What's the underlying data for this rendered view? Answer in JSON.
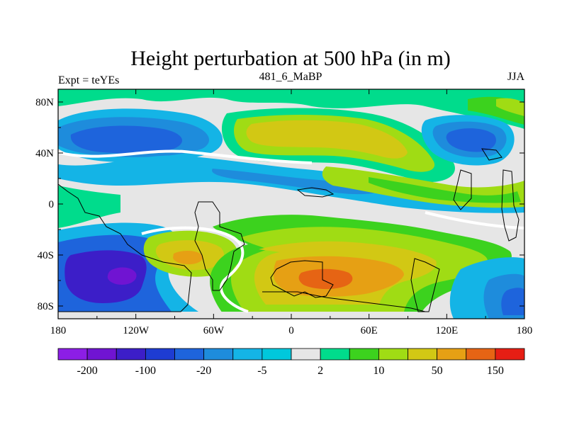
{
  "chart_data": {
    "type": "heatmap",
    "title": "Height perturbation at 500 hPa (in m)",
    "left_label": "Expt = teYEs",
    "center_label": "481_6_MaBP",
    "right_label": "JJA",
    "x_ticks": [
      "180",
      "120W",
      "60W",
      "0",
      "60E",
      "120E",
      "180"
    ],
    "x_tick_values": [
      -180,
      -120,
      -60,
      0,
      60,
      120,
      180
    ],
    "y_ticks": [
      "80N",
      "40N",
      "0",
      "40S",
      "80S"
    ],
    "y_tick_values": [
      80,
      40,
      0,
      -40,
      -80
    ],
    "xlim": [
      -180,
      180
    ],
    "ylim": [
      -90,
      90
    ],
    "colorbar": {
      "levels": [
        "-200",
        "-100",
        "-20",
        "-5",
        "2",
        "10",
        "50",
        "150"
      ],
      "colors": [
        "#8c1ee6",
        "#7014d2",
        "#3c1ec8",
        "#1e3cd2",
        "#1e64dc",
        "#1e8cdc",
        "#14b4e6",
        "#00c8dc",
        "#e6e6e6",
        "#00dc8c",
        "#3cd21e",
        "#a0dc14",
        "#d2c814",
        "#e6a014",
        "#e66414",
        "#e61e14"
      ]
    },
    "features": [
      {
        "name": "NH polar positive",
        "sign": "+",
        "value": 5
      },
      {
        "name": "N Atlantic-Eurasia high",
        "sign": "+",
        "value": 60
      },
      {
        "name": "N Pacific low",
        "sign": "-",
        "value": -50
      },
      {
        "name": "NE Asia low",
        "sign": "-",
        "value": -30
      },
      {
        "name": "S Pacific deep low",
        "sign": "-",
        "value": -100
      },
      {
        "name": "S Atlantic high",
        "sign": "+",
        "value": 55
      },
      {
        "name": "S Indian Ocean high",
        "sign": "+",
        "value": 110
      },
      {
        "name": "S Pacific high",
        "sign": "+",
        "value": 40
      }
    ]
  }
}
